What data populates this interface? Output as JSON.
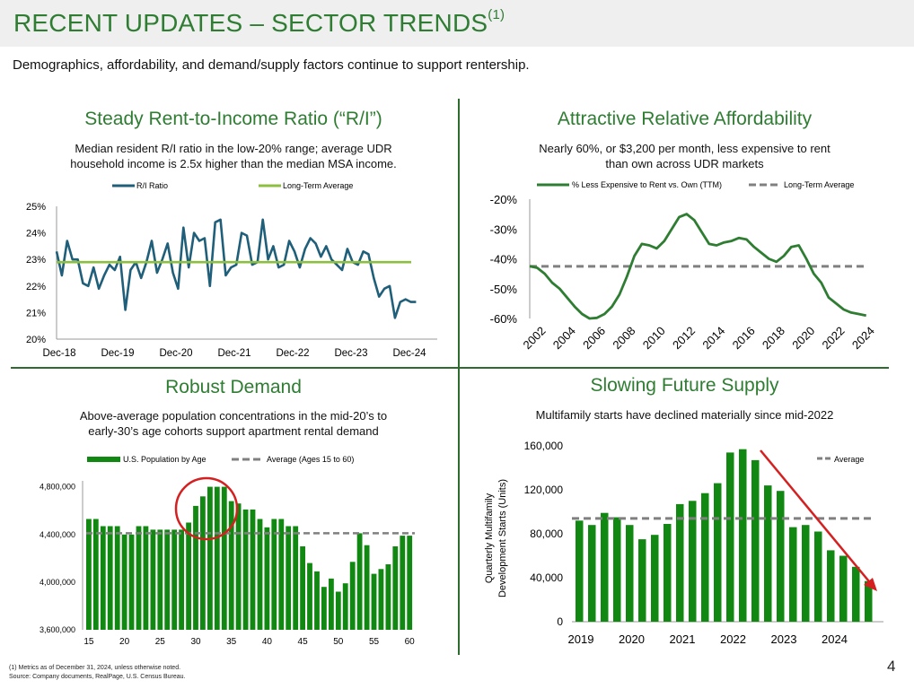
{
  "header": {
    "title": "RECENT UPDATES – SECTOR TRENDS",
    "title_sup": "(1)"
  },
  "subtitle": "Demographics, affordability, and demand/supply factors continue to support rentership.",
  "colors": {
    "accent": "#2e7d32",
    "bar": "#118811",
    "teal": "#1f5f7a",
    "lightgreen": "#8cbf3f",
    "grey": "#808080",
    "red": "#d42020"
  },
  "panels": {
    "ri": {
      "title": "Steady Rent-to-Income Ratio (“R/I”)",
      "desc1": "Median resident R/I ratio in the low-20% range; average UDR",
      "desc2": "household income is 2.5x higher than the median MSA income."
    },
    "afford": {
      "title": "Attractive Relative Affordability",
      "desc1": "Nearly 60%, or $3,200 per month, less expensive to rent",
      "desc2": "than own across UDR markets"
    },
    "demand": {
      "title": "Robust Demand",
      "desc1": "Above-average population concentrations in the mid-20’s to",
      "desc2": "early-30’s age cohorts support apartment rental demand"
    },
    "supply": {
      "title": "Slowing Future Supply",
      "desc1": "Multifamily starts have declined materially since mid-2022"
    }
  },
  "chart_data": [
    {
      "id": "ri",
      "type": "line",
      "legend": [
        "R/I Ratio",
        "Long-Term Average"
      ],
      "xticks": [
        "Dec-18",
        "Dec-19",
        "Dec-20",
        "Dec-21",
        "Dec-22",
        "Dec-23",
        "Dec-24"
      ],
      "yticks": [
        "25%",
        "24%",
        "23%",
        "22%",
        "21%",
        "20%"
      ],
      "ylim": [
        20,
        25
      ],
      "x_range": [
        0,
        72
      ],
      "average": 22.9,
      "series": [
        {
          "x": 0,
          "y": 23.3
        },
        {
          "x": 1,
          "y": 22.4
        },
        {
          "x": 2,
          "y": 23.7
        },
        {
          "x": 3,
          "y": 23.0
        },
        {
          "x": 4,
          "y": 23.0
        },
        {
          "x": 5,
          "y": 22.1
        },
        {
          "x": 6,
          "y": 22.0
        },
        {
          "x": 7,
          "y": 22.7
        },
        {
          "x": 8,
          "y": 21.9
        },
        {
          "x": 9,
          "y": 22.4
        },
        {
          "x": 10,
          "y": 22.8
        },
        {
          "x": 11,
          "y": 22.6
        },
        {
          "x": 12,
          "y": 23.1
        },
        {
          "x": 13,
          "y": 21.1
        },
        {
          "x": 14,
          "y": 22.6
        },
        {
          "x": 15,
          "y": 22.9
        },
        {
          "x": 16,
          "y": 22.3
        },
        {
          "x": 17,
          "y": 22.9
        },
        {
          "x": 18,
          "y": 23.7
        },
        {
          "x": 19,
          "y": 22.5
        },
        {
          "x": 20,
          "y": 23.0
        },
        {
          "x": 21,
          "y": 23.6
        },
        {
          "x": 22,
          "y": 22.5
        },
        {
          "x": 23,
          "y": 21.9
        },
        {
          "x": 24,
          "y": 24.2
        },
        {
          "x": 25,
          "y": 22.7
        },
        {
          "x": 26,
          "y": 24.0
        },
        {
          "x": 27,
          "y": 23.7
        },
        {
          "x": 28,
          "y": 23.8
        },
        {
          "x": 29,
          "y": 22.0
        },
        {
          "x": 30,
          "y": 24.4
        },
        {
          "x": 31,
          "y": 24.5
        },
        {
          "x": 32,
          "y": 22.4
        },
        {
          "x": 33,
          "y": 22.7
        },
        {
          "x": 34,
          "y": 22.8
        },
        {
          "x": 35,
          "y": 24.0
        },
        {
          "x": 36,
          "y": 23.9
        },
        {
          "x": 37,
          "y": 22.8
        },
        {
          "x": 38,
          "y": 22.9
        },
        {
          "x": 39,
          "y": 24.5
        },
        {
          "x": 40,
          "y": 23.0
        },
        {
          "x": 41,
          "y": 23.5
        },
        {
          "x": 42,
          "y": 22.7
        },
        {
          "x": 43,
          "y": 22.8
        },
        {
          "x": 44,
          "y": 23.7
        },
        {
          "x": 45,
          "y": 23.3
        },
        {
          "x": 46,
          "y": 22.7
        },
        {
          "x": 47,
          "y": 23.4
        },
        {
          "x": 48,
          "y": 23.8
        },
        {
          "x": 49,
          "y": 23.6
        },
        {
          "x": 50,
          "y": 23.1
        },
        {
          "x": 51,
          "y": 23.5
        },
        {
          "x": 52,
          "y": 23.0
        },
        {
          "x": 53,
          "y": 22.8
        },
        {
          "x": 54,
          "y": 22.6
        },
        {
          "x": 55,
          "y": 23.4
        },
        {
          "x": 56,
          "y": 22.9
        },
        {
          "x": 57,
          "y": 22.8
        },
        {
          "x": 58,
          "y": 23.3
        },
        {
          "x": 59,
          "y": 23.2
        },
        {
          "x": 60,
          "y": 22.3
        },
        {
          "x": 61,
          "y": 21.6
        },
        {
          "x": 62,
          "y": 21.9
        },
        {
          "x": 63,
          "y": 22.0
        },
        {
          "x": 64,
          "y": 20.8
        },
        {
          "x": 65,
          "y": 21.4
        },
        {
          "x": 66,
          "y": 21.5
        },
        {
          "x": 67,
          "y": 21.4
        },
        {
          "x": 68,
          "y": 21.4
        }
      ]
    },
    {
      "id": "afford",
      "type": "line",
      "legend": [
        "% Less Expensive to Rent vs. Own (TTM)",
        "Long-Term Average"
      ],
      "xticks": [
        "2002",
        "2004",
        "2006",
        "2008",
        "2010",
        "2012",
        "2014",
        "2016",
        "2018",
        "2020",
        "2022",
        "2024"
      ],
      "yticks": [
        "-20%",
        "-30%",
        "-40%",
        "-50%",
        "-60%"
      ],
      "ylim": [
        -60,
        -20
      ],
      "x_range": [
        2002,
        2024.7
      ],
      "average": -42.5,
      "series": [
        {
          "x": 2002.0,
          "y": -42.5
        },
        {
          "x": 2002.5,
          "y": -43.0
        },
        {
          "x": 2003.0,
          "y": -45.0
        },
        {
          "x": 2003.5,
          "y": -48.0
        },
        {
          "x": 2004.0,
          "y": -50.0
        },
        {
          "x": 2004.5,
          "y": -53.0
        },
        {
          "x": 2005.0,
          "y": -56.0
        },
        {
          "x": 2005.5,
          "y": -58.5
        },
        {
          "x": 2006.0,
          "y": -60.0
        },
        {
          "x": 2006.5,
          "y": -59.8
        },
        {
          "x": 2007.0,
          "y": -58.5
        },
        {
          "x": 2007.5,
          "y": -56.0
        },
        {
          "x": 2008.0,
          "y": -52.0
        },
        {
          "x": 2008.5,
          "y": -46.0
        },
        {
          "x": 2009.0,
          "y": -39.0
        },
        {
          "x": 2009.5,
          "y": -35.0
        },
        {
          "x": 2010.0,
          "y": -35.5
        },
        {
          "x": 2010.5,
          "y": -36.5
        },
        {
          "x": 2011.0,
          "y": -34.0
        },
        {
          "x": 2011.5,
          "y": -30.0
        },
        {
          "x": 2012.0,
          "y": -26.0
        },
        {
          "x": 2012.5,
          "y": -25.0
        },
        {
          "x": 2013.0,
          "y": -27.0
        },
        {
          "x": 2013.5,
          "y": -31.0
        },
        {
          "x": 2014.0,
          "y": -35.0
        },
        {
          "x": 2014.5,
          "y": -35.5
        },
        {
          "x": 2015.0,
          "y": -34.5
        },
        {
          "x": 2015.5,
          "y": -34.0
        },
        {
          "x": 2016.0,
          "y": -33.0
        },
        {
          "x": 2016.5,
          "y": -33.5
        },
        {
          "x": 2017.0,
          "y": -36.0
        },
        {
          "x": 2017.5,
          "y": -38.0
        },
        {
          "x": 2018.0,
          "y": -40.0
        },
        {
          "x": 2018.5,
          "y": -41.0
        },
        {
          "x": 2019.0,
          "y": -39.0
        },
        {
          "x": 2019.5,
          "y": -36.0
        },
        {
          "x": 2020.0,
          "y": -35.5
        },
        {
          "x": 2020.5,
          "y": -40.0
        },
        {
          "x": 2021.0,
          "y": -45.0
        },
        {
          "x": 2021.5,
          "y": -48.0
        },
        {
          "x": 2022.0,
          "y": -53.0
        },
        {
          "x": 2022.5,
          "y": -55.0
        },
        {
          "x": 2023.0,
          "y": -57.0
        },
        {
          "x": 2023.5,
          "y": -58.0
        },
        {
          "x": 2024.0,
          "y": -58.5
        },
        {
          "x": 2024.5,
          "y": -59.0
        }
      ]
    },
    {
      "id": "demand",
      "type": "bar",
      "legend": [
        "U.S. Population by Age",
        "Average (Ages 15 to 60)"
      ],
      "xticks": [
        "15",
        "20",
        "25",
        "30",
        "35",
        "40",
        "45",
        "50",
        "55",
        "60"
      ],
      "yticks": [
        "4,800,000",
        "4,400,000",
        "4,000,000",
        "3,600,000"
      ],
      "ylim": [
        3600000,
        4850000
      ],
      "average": 4410000,
      "categories": [
        15,
        16,
        17,
        18,
        19,
        20,
        21,
        22,
        23,
        24,
        25,
        26,
        27,
        28,
        29,
        30,
        31,
        32,
        33,
        34,
        35,
        36,
        37,
        38,
        39,
        40,
        41,
        42,
        43,
        44,
        45,
        46,
        47,
        48,
        49,
        50,
        51,
        52,
        53,
        54,
        55,
        56,
        57,
        58,
        59,
        60
      ],
      "values": [
        4530000,
        4530000,
        4470000,
        4470000,
        4470000,
        4400000,
        4400000,
        4470000,
        4470000,
        4440000,
        4440000,
        4440000,
        4440000,
        4440000,
        4500000,
        4640000,
        4720000,
        4800000,
        4800000,
        4800000,
        4680000,
        4660000,
        4610000,
        4610000,
        4530000,
        4460000,
        4530000,
        4530000,
        4470000,
        4470000,
        4300000,
        4160000,
        4090000,
        3960000,
        4030000,
        3920000,
        3990000,
        4170000,
        4410000,
        4310000,
        4070000,
        4110000,
        4150000,
        4300000,
        4390000,
        4390000
      ]
    },
    {
      "id": "supply",
      "type": "bar",
      "legend": [
        "Average"
      ],
      "ylabel": [
        "Quarterly Multifamily",
        "Development Starts (Units)"
      ],
      "xticks": [
        "2019",
        "2020",
        "2021",
        "2022",
        "2023",
        "2024"
      ],
      "yticks": [
        "160,000",
        "120,000",
        "80,000",
        "40,000",
        "0"
      ],
      "ylim": [
        0,
        160000
      ],
      "average": 94000,
      "categories": [
        "2019Q1",
        "2019Q2",
        "2019Q3",
        "2019Q4",
        "2020Q1",
        "2020Q2",
        "2020Q3",
        "2020Q4",
        "2021Q1",
        "2021Q2",
        "2021Q3",
        "2021Q4",
        "2022Q1",
        "2022Q2",
        "2022Q3",
        "2022Q4",
        "2023Q1",
        "2023Q2",
        "2023Q3",
        "2023Q4",
        "2024Q1",
        "2024Q2",
        "2024Q3",
        "2024Q4"
      ],
      "values": [
        92000,
        88000,
        99000,
        95000,
        88000,
        75000,
        79000,
        89000,
        107000,
        110000,
        117000,
        126000,
        154000,
        157000,
        147000,
        124000,
        119000,
        86000,
        88000,
        82000,
        65000,
        60000,
        50000,
        37000
      ]
    }
  ],
  "footnote": {
    "line1": "(1)   Metrics as of December 31, 2024, unless otherwise noted.",
    "line2": "Source: Company documents, RealPage, U.S. Census Bureau."
  },
  "page_number": "4"
}
